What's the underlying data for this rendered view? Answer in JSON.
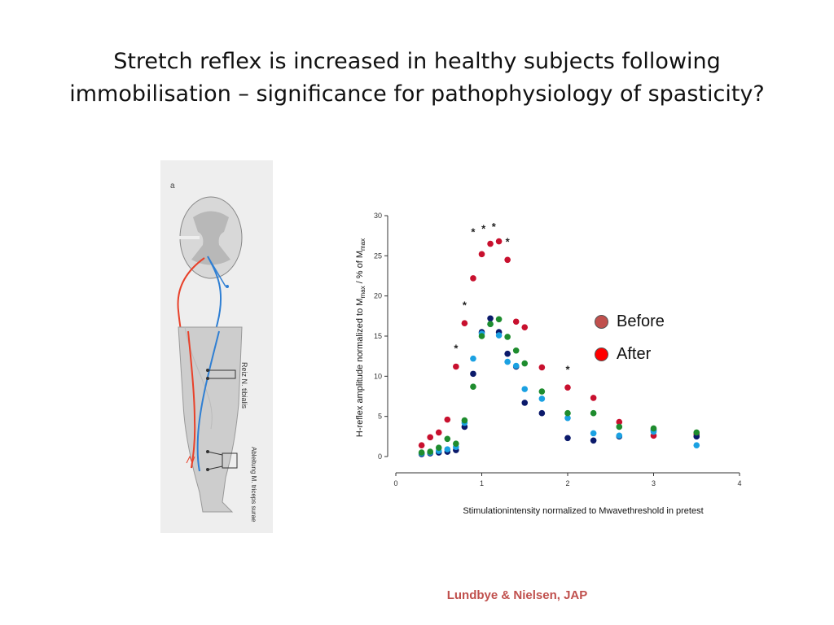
{
  "slide": {
    "title_line1": "Stretch reflex is increased in healthy subjects following",
    "title_line2": "immobilisation – significance for pathophysiology of spasticity?",
    "citation": "Lundbye & Nielsen, JAP"
  },
  "figure": {
    "panel_letter": "a",
    "label_stim": "Reiz N. tibialis",
    "label_rec": "Ableitung M. triceps surae"
  },
  "legend": {
    "items": [
      {
        "label": "Before",
        "color": "#c0504d"
      },
      {
        "label": "After",
        "color": "#ff0000"
      }
    ]
  },
  "chart_data": {
    "type": "scatter",
    "xlabel": "Stimulationintensity normalized to Mwavethreshold in pretest",
    "ylabel_main": "H-reflex amplitude normalized to M",
    "ylabel_sub": "max",
    "ylabel_mid": " / % of M",
    "ylabel_sub2": "max",
    "xlim": [
      0,
      4
    ],
    "ylim": [
      0,
      30
    ],
    "xticks": [
      0,
      1,
      2,
      3,
      4
    ],
    "yticks": [
      0,
      5,
      10,
      15,
      20,
      25,
      30
    ],
    "grid": false,
    "series": [
      {
        "color": "#c8102e",
        "points": [
          [
            0.3,
            1.4
          ],
          [
            0.4,
            2.4
          ],
          [
            0.5,
            3.0
          ],
          [
            0.6,
            4.6
          ],
          [
            0.7,
            11.2
          ],
          [
            0.8,
            16.6
          ],
          [
            0.9,
            22.2
          ],
          [
            1.0,
            25.2
          ],
          [
            1.1,
            26.5
          ],
          [
            1.2,
            26.8
          ],
          [
            1.3,
            24.5
          ],
          [
            1.4,
            16.8
          ],
          [
            1.5,
            16.1
          ],
          [
            1.7,
            11.1
          ],
          [
            2.0,
            8.6
          ],
          [
            2.3,
            7.3
          ],
          [
            2.6,
            4.3
          ],
          [
            3.0,
            2.6
          ],
          [
            3.5,
            2.8
          ]
        ]
      },
      {
        "color": "#0b1a6b",
        "points": [
          [
            0.3,
            0.3
          ],
          [
            0.4,
            0.4
          ],
          [
            0.5,
            0.5
          ],
          [
            0.6,
            0.6
          ],
          [
            0.7,
            0.8
          ],
          [
            0.8,
            3.7
          ],
          [
            0.9,
            10.3
          ],
          [
            1.0,
            15.5
          ],
          [
            1.1,
            17.2
          ],
          [
            1.2,
            15.5
          ],
          [
            1.3,
            12.8
          ],
          [
            1.4,
            11.2
          ],
          [
            1.5,
            6.7
          ],
          [
            1.7,
            5.4
          ],
          [
            2.0,
            2.3
          ],
          [
            2.3,
            2.0
          ],
          [
            2.6,
            2.5
          ],
          [
            3.0,
            3.3
          ],
          [
            3.5,
            2.5
          ]
        ]
      },
      {
        "color": "#1ba1e2",
        "points": [
          [
            0.3,
            0.4
          ],
          [
            0.4,
            0.5
          ],
          [
            0.5,
            0.7
          ],
          [
            0.6,
            0.9
          ],
          [
            0.7,
            1.2
          ],
          [
            0.8,
            4.2
          ],
          [
            0.9,
            12.2
          ],
          [
            1.0,
            15.3
          ],
          [
            1.1,
            16.5
          ],
          [
            1.2,
            15.1
          ],
          [
            1.3,
            11.8
          ],
          [
            1.4,
            11.3
          ],
          [
            1.5,
            8.4
          ],
          [
            1.7,
            7.2
          ],
          [
            2.0,
            4.8
          ],
          [
            2.3,
            2.9
          ],
          [
            2.6,
            2.6
          ],
          [
            3.0,
            3.1
          ],
          [
            3.5,
            1.4
          ]
        ]
      },
      {
        "color": "#1e8c2e",
        "points": [
          [
            0.3,
            0.5
          ],
          [
            0.4,
            0.6
          ],
          [
            0.5,
            1.1
          ],
          [
            0.6,
            2.2
          ],
          [
            0.7,
            1.6
          ],
          [
            0.8,
            4.5
          ],
          [
            0.9,
            8.7
          ],
          [
            1.0,
            15.0
          ],
          [
            1.1,
            16.5
          ],
          [
            1.2,
            17.1
          ],
          [
            1.3,
            14.9
          ],
          [
            1.4,
            13.2
          ],
          [
            1.5,
            11.6
          ],
          [
            1.7,
            8.1
          ],
          [
            2.0,
            5.4
          ],
          [
            2.3,
            5.4
          ],
          [
            2.6,
            3.7
          ],
          [
            3.0,
            3.5
          ],
          [
            3.5,
            3.0
          ]
        ]
      }
    ],
    "annotations": [
      {
        "text": "*",
        "x": 0.7,
        "y": 13.0
      },
      {
        "text": "*",
        "x": 0.8,
        "y": 18.4
      },
      {
        "text": "*",
        "x": 0.9,
        "y": 27.5
      },
      {
        "text": "*",
        "x": 1.02,
        "y": 27.9
      },
      {
        "text": "*",
        "x": 1.14,
        "y": 28.2
      },
      {
        "text": "*",
        "x": 1.3,
        "y": 26.3
      },
      {
        "text": "*",
        "x": 2.0,
        "y": 10.4
      }
    ]
  }
}
